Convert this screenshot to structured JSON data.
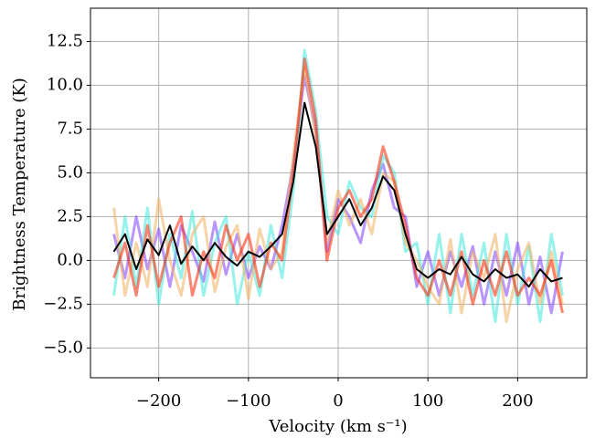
{
  "chart_data": {
    "type": "line",
    "x_label": "Velocity (km s⁻¹)",
    "y_label": "Brightness Temperature (K)",
    "x": [
      -250,
      -237.5,
      -225,
      -212.5,
      -200,
      -187.5,
      -175,
      -162.5,
      -150,
      -137.5,
      -125,
      -112.5,
      -100,
      -87.5,
      -75,
      -62.5,
      -50,
      -37.5,
      -25,
      -12.5,
      0,
      12.5,
      25,
      37.5,
      50,
      62.5,
      75,
      87.5,
      100,
      112.5,
      125,
      137.5,
      150,
      162.5,
      175,
      187.5,
      200,
      212.5,
      225,
      237.5,
      250
    ],
    "series": [
      {
        "color": "#7f3fff",
        "values": [
          1.5,
          -1.0,
          2.5,
          -0.5,
          1.8,
          -1.5,
          2.0,
          0.5,
          -1.2,
          2.2,
          -0.8,
          1.5,
          -1.0,
          0.8,
          -0.5,
          2.0,
          5.5,
          10.5,
          7.5,
          0.5,
          3.5,
          2.5,
          1.0,
          4.0,
          5.5,
          3.0,
          2.5,
          -1.5,
          0.5,
          -2.0,
          0.5,
          -1.5,
          0.8,
          -2.5,
          0.5,
          -2.0,
          1.0,
          -2.5,
          0.2,
          -3.0,
          0.5
        ]
      },
      {
        "color": "#3fe8d8",
        "values": [
          -2.0,
          2.5,
          -1.5,
          3.0,
          -2.5,
          1.5,
          -1.0,
          2.8,
          -2.0,
          1.0,
          2.5,
          -2.5,
          0.5,
          -2.0,
          2.0,
          -1.0,
          4.0,
          12.0,
          8.5,
          2.5,
          1.5,
          4.5,
          3.0,
          2.5,
          6.0,
          5.0,
          0.5,
          1.0,
          -2.5,
          1.5,
          -3.0,
          1.5,
          -2.0,
          1.0,
          -3.5,
          1.5,
          -2.5,
          0.8,
          -3.5,
          1.5,
          -2.0
        ]
      },
      {
        "color": "#f0b060",
        "values": [
          3.0,
          -2.0,
          1.0,
          -1.5,
          3.5,
          0.0,
          -2.0,
          1.5,
          2.5,
          -1.8,
          0.8,
          2.0,
          -2.2,
          1.8,
          -0.5,
          0.5,
          6.0,
          11.0,
          7.0,
          1.0,
          4.0,
          2.0,
          3.5,
          1.5,
          5.0,
          4.5,
          1.0,
          0.0,
          -1.5,
          -2.5,
          1.2,
          -3.0,
          0.5,
          -1.0,
          1.5,
          -3.5,
          -0.5,
          1.0,
          -2.5,
          0.5,
          -2.5
        ]
      },
      {
        "color": "#ff2000",
        "values": [
          -1.0,
          1.0,
          -2.0,
          2.0,
          -1.5,
          1.0,
          2.5,
          -2.0,
          0.5,
          -1.0,
          2.0,
          0.0,
          1.5,
          -1.5,
          1.0,
          0.0,
          5.0,
          11.5,
          8.0,
          0.0,
          3.0,
          4.0,
          2.5,
          3.5,
          6.5,
          4.5,
          2.0,
          -1.0,
          -2.0,
          0.0,
          -2.0,
          0.5,
          -2.5,
          0.0,
          -2.0,
          0.5,
          -2.0,
          -1.0,
          -2.0,
          0.0,
          -3.0
        ]
      },
      {
        "color": "#000000",
        "values": [
          0.5,
          1.5,
          -0.5,
          1.2,
          0.3,
          2.0,
          -0.2,
          0.8,
          0.0,
          1.0,
          0.2,
          -0.3,
          0.5,
          0.2,
          0.8,
          1.5,
          4.5,
          9.0,
          6.5,
          1.5,
          2.5,
          3.5,
          2.0,
          3.0,
          4.8,
          4.0,
          1.5,
          -0.5,
          -1.0,
          -0.5,
          -0.8,
          0.2,
          -0.8,
          -1.2,
          -0.5,
          -1.0,
          -0.8,
          -1.5,
          -0.5,
          -1.2,
          -1.0
        ]
      }
    ],
    "xlim": [
      -276,
      277
    ],
    "ylim": [
      -6.7,
      14.4
    ],
    "xticks": [
      {
        "value": -200,
        "label": "−200"
      },
      {
        "value": -100,
        "label": "−100"
      },
      0,
      100,
      200
    ],
    "yticks": [
      {
        "value": -5,
        "label": "−5.0"
      },
      {
        "value": -2.5,
        "label": "−2.5"
      },
      {
        "value": 0,
        "label": "0.0"
      },
      2.5,
      {
        "value": 5,
        "label": "5.0"
      },
      7.5,
      {
        "value": 10,
        "label": "10.0"
      },
      12.5
    ],
    "grid": true
  }
}
